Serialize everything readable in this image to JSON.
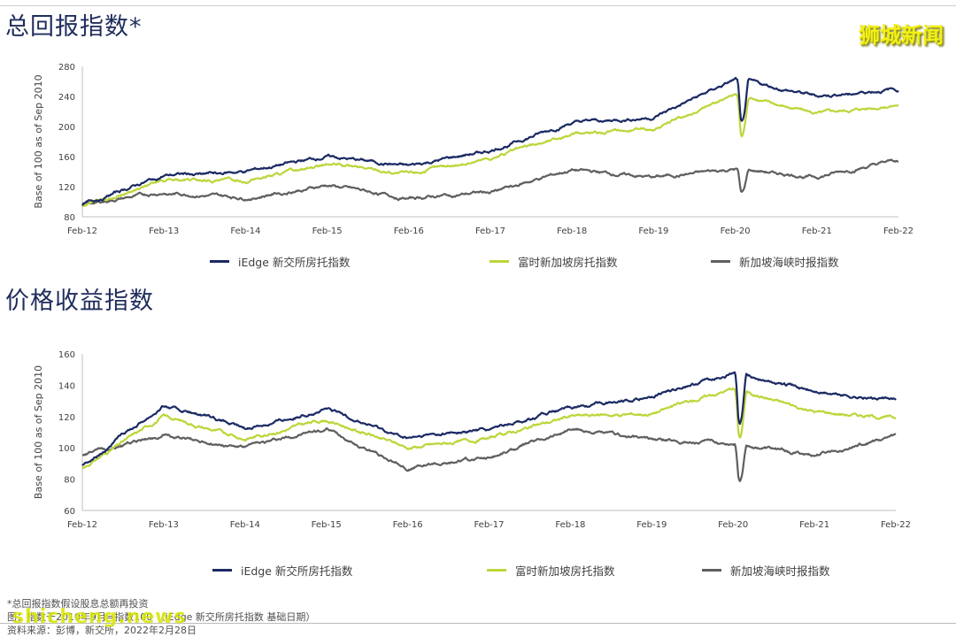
{
  "header": {
    "watermark": "狮城新闻"
  },
  "colors": {
    "iedge": "#1b2a63",
    "ftse": "#bcd63a",
    "sti": "#5f5f5f",
    "title": "#1f2d5c"
  },
  "legend": [
    {
      "label": "iEdge 新交所房托指数",
      "color": "#1b2a63"
    },
    {
      "label": "富时新加坡房托指数",
      "color": "#bcd63a"
    },
    {
      "label": "新加坡海峡时报指数",
      "color": "#5f5f5f"
    }
  ],
  "footer": {
    "note1": "*总回报指数假设股息总额再投资",
    "note2": "图：指数于2010年9月=指数100 （iEdge 新交所房托指数 基础日期）",
    "note3": "资料来源：彭博，新交所，2022年2月28日",
    "watermark": "shicheng.news"
  },
  "chart_data": [
    {
      "type": "line",
      "title": "总回报指数*",
      "xlabel": "",
      "ylabel": "Base of 100 as of Sep 2010",
      "ylim": [
        80,
        280
      ],
      "yticks": [
        80,
        120,
        160,
        200,
        240,
        280
      ],
      "x": [
        "Feb-12",
        "Feb-13",
        "Feb-14",
        "Feb-15",
        "Feb-16",
        "Feb-17",
        "Feb-18",
        "Feb-19",
        "Feb-20",
        "Feb-21",
        "Feb-22"
      ],
      "grid": false,
      "legend_position": "bottom",
      "series": [
        {
          "name": "iEdge 新交所房托指数",
          "values": [
            96,
            135,
            140,
            160,
            147,
            168,
            205,
            212,
            262,
            240,
            250
          ]
        },
        {
          "name": "富时新加坡房托指数",
          "values": [
            94,
            128,
            128,
            150,
            137,
            158,
            190,
            197,
            243,
            218,
            230
          ]
        },
        {
          "name": "新加坡海峡时报指数",
          "values": [
            97,
            112,
            105,
            122,
            104,
            113,
            142,
            132,
            143,
            133,
            155
          ]
        }
      ]
    },
    {
      "type": "line",
      "title": "价格收益指数",
      "xlabel": "",
      "ylabel": "Base of 100 as of Sep 2010",
      "ylim": [
        60,
        160
      ],
      "yticks": [
        60,
        80,
        100,
        120,
        140,
        160
      ],
      "x": [
        "Feb-12",
        "Feb-13",
        "Feb-14",
        "Feb-15",
        "Feb-16",
        "Feb-17",
        "Feb-18",
        "Feb-19",
        "Feb-20",
        "Feb-21",
        "Feb-22"
      ],
      "grid": false,
      "legend_position": "bottom",
      "series": [
        {
          "name": "iEdge 新交所房托指数",
          "values": [
            89,
            127,
            112,
            125,
            106,
            112,
            125,
            133,
            148,
            136,
            130
          ]
        },
        {
          "name": "富时新加坡房托指数",
          "values": [
            87,
            120,
            106,
            118,
            100,
            106,
            120,
            122,
            138,
            123,
            119
          ]
        },
        {
          "name": "新加坡海峡时报指数",
          "values": [
            95,
            108,
            100,
            112,
            87,
            94,
            112,
            105,
            103,
            95,
            108
          ]
        }
      ]
    }
  ]
}
